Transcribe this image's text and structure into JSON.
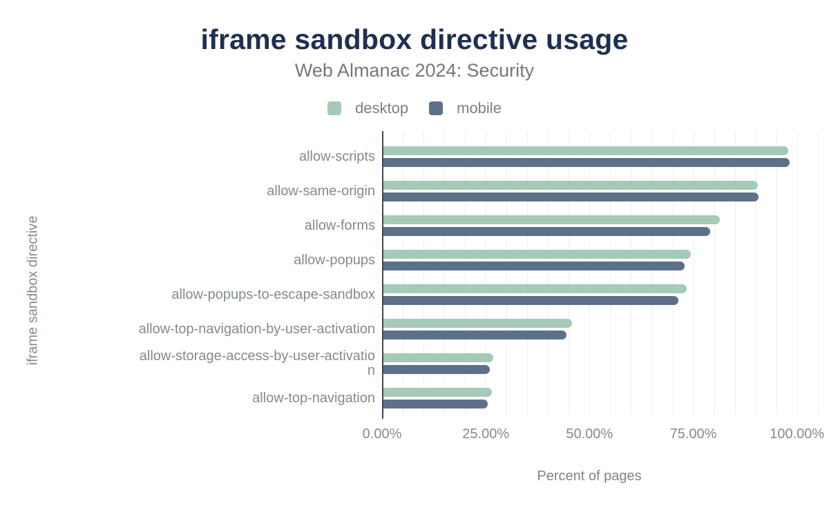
{
  "title": "iframe sandbox directive usage",
  "subtitle": "Web Almanac 2024: Security",
  "legend": [
    {
      "label": "desktop",
      "color": "#a5cab7"
    },
    {
      "label": "mobile",
      "color": "#5d7089"
    }
  ],
  "colors": {
    "title_text": "#1e3050",
    "muted_text": "#848990",
    "axis_line": "#3d4552",
    "gridline": "#ededef",
    "background": "#ffffff",
    "desktop_bar": "#a5cab7",
    "mobile_bar": "#5d7089"
  },
  "chart_data": {
    "type": "bar",
    "orientation": "horizontal",
    "title": "iframe sandbox directive usage",
    "subtitle": "Web Almanac 2024: Security",
    "categories": [
      "allow-scripts",
      "allow-same-origin",
      "allow-forms",
      "allow-popups",
      "allow-popups-to-escape-sandbox",
      "allow-top-navigation-by-user-activation",
      "allow-storage-access-by-user-activation",
      "allow-top-navigation"
    ],
    "category_display": [
      [
        "allow-scripts"
      ],
      [
        "allow-same-origin"
      ],
      [
        "allow-forms"
      ],
      [
        "allow-popups"
      ],
      [
        "allow-popups-to-escape-sandbox"
      ],
      [
        "allow-top-navigation-by-user-activation"
      ],
      [
        "allow-storage-access-by-user-activatio",
        "n"
      ],
      [
        "allow-top-navigation"
      ]
    ],
    "series": [
      {
        "name": "desktop",
        "color": "#a5cab7",
        "values": [
          97.8,
          90.5,
          81.4,
          74.4,
          73.4,
          45.7,
          26.8,
          26.5
        ]
      },
      {
        "name": "mobile",
        "color": "#5d7089",
        "values": [
          98.2,
          90.8,
          79.1,
          72.9,
          71.4,
          44.4,
          25.9,
          25.4
        ]
      }
    ],
    "xlabel": "Percent of pages",
    "ylabel": "iframe sandbox directive",
    "x_ticks": [
      "0.00%",
      "25.00%",
      "50.00%",
      "75.00%",
      "100.00%"
    ],
    "x_tick_values": [
      0,
      25,
      50,
      75,
      100
    ],
    "xlim": [
      0,
      105.2
    ],
    "grid": "vertical, every 5%",
    "legend_position": "top-center",
    "data_labels": false
  }
}
